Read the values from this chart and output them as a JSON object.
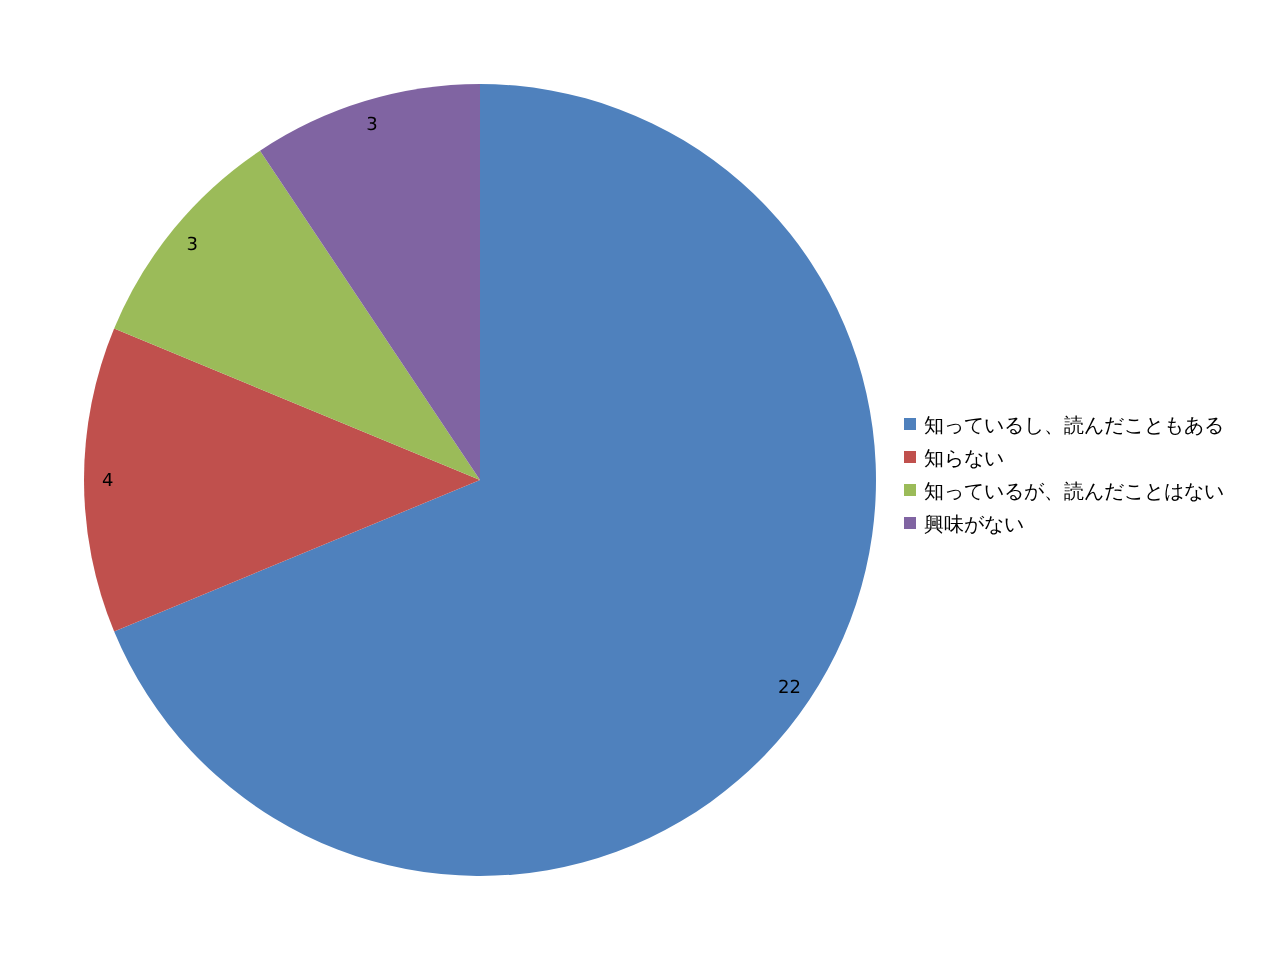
{
  "chart_data": {
    "type": "pie",
    "categories": [
      "知っているし、読んだこともある",
      "知らない",
      "知っているが、読んだことはない",
      "興味がない"
    ],
    "values": [
      22,
      4,
      3,
      3
    ],
    "colors": [
      "#4f81bd",
      "#c0504d",
      "#9bbb59",
      "#8064a2"
    ],
    "data_labels": true,
    "legend": "right"
  }
}
